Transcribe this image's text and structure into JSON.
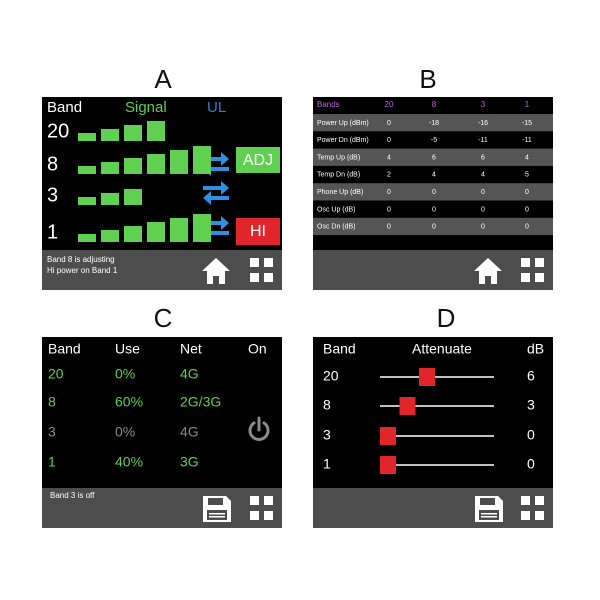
{
  "panels": [
    {
      "label": "A",
      "header": {
        "band": "Band",
        "signal": "Signal",
        "ul": "UL"
      },
      "bands": [
        20,
        8,
        3,
        1
      ],
      "signal_bars": [
        4,
        6,
        3,
        6
      ],
      "adj": "ADJ",
      "hi": "HI",
      "status": [
        "Band 8 is adjusting",
        "Hi power on Band 1"
      ]
    },
    {
      "label": "B",
      "header": [
        "Bands",
        20,
        8,
        3,
        1
      ],
      "rows": [
        [
          "Power Up (dBm)",
          0,
          -18,
          -16,
          -15
        ],
        [
          "Power Dn (dBm)",
          0,
          -5,
          -11,
          -11
        ],
        [
          "Temp Up (dB)",
          4,
          6,
          6,
          4
        ],
        [
          "Temp Dn (dB)",
          2,
          4,
          4,
          5
        ],
        [
          "Phone Up (dB)",
          0,
          0,
          0,
          0
        ],
        [
          "Osc Up (dB)",
          0,
          0,
          0,
          0
        ],
        [
          "Osc Dn (dB)",
          0,
          0,
          0,
          0
        ]
      ]
    },
    {
      "label": "C",
      "header": [
        "Band",
        "Use",
        "Net",
        "On"
      ],
      "rows": [
        {
          "cells": [
            20,
            "0%",
            "4G"
          ],
          "color": "#5fd04f"
        },
        {
          "cells": [
            8,
            "60%",
            "2G/3G"
          ],
          "color": "#5fd04f"
        },
        {
          "cells": [
            3,
            "0%",
            "4G"
          ],
          "color": "#8a8a8a"
        },
        {
          "cells": [
            1,
            "40%",
            "3G"
          ],
          "color": "#5fd04f"
        }
      ],
      "status": "Band 3 is off"
    },
    {
      "label": "D",
      "header": [
        "Band",
        "Attenuate",
        "dB"
      ],
      "rows": [
        {
          "band": 20,
          "db": 6
        },
        {
          "band": 8,
          "db": 3
        },
        {
          "band": 3,
          "db": 0
        },
        {
          "band": 1,
          "db": 0
        }
      ]
    }
  ]
}
